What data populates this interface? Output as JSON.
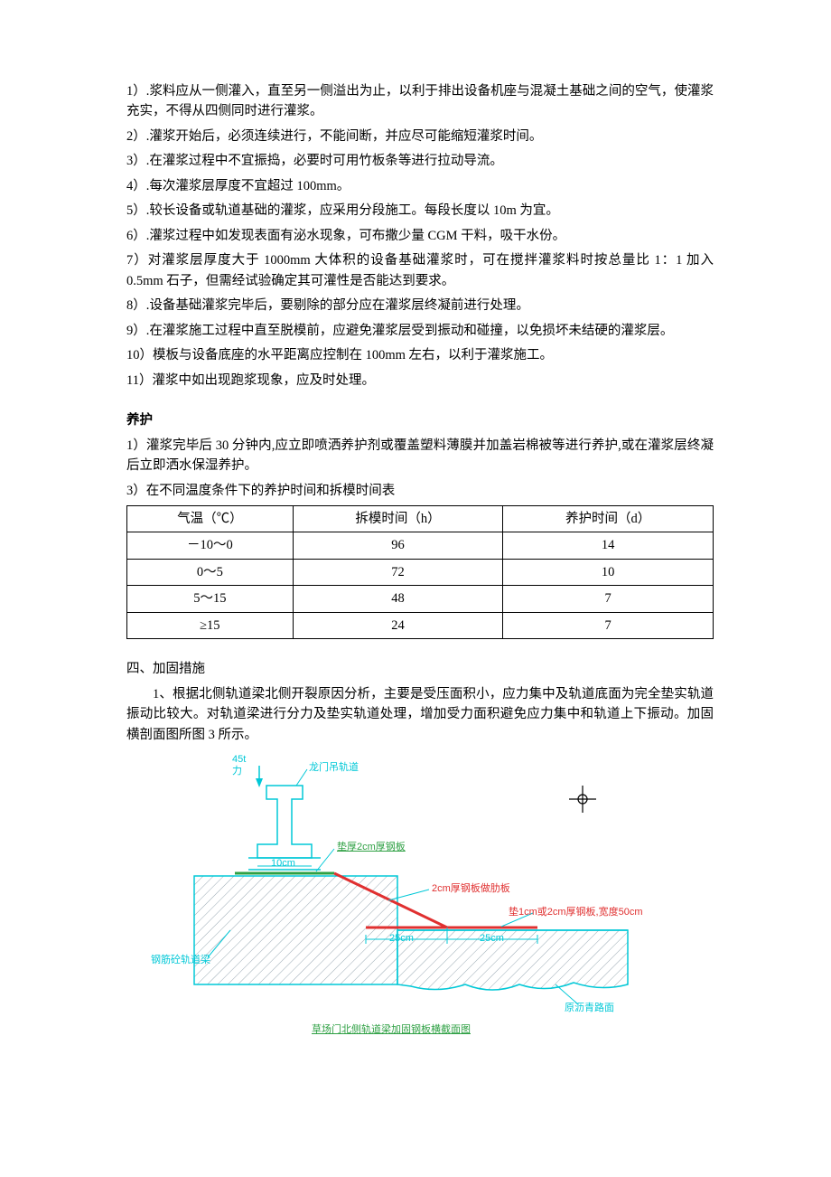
{
  "items": [
    "1）.浆料应从一侧灌入，直至另一侧溢出为止，以利于排出设备机座与混凝土基础之间的空气，使灌浆充实，不得从四侧同时进行灌浆。",
    "2）.灌浆开始后，必须连续进行，不能间断，并应尽可能缩短灌浆时间。",
    "3）.在灌浆过程中不宜振捣，必要时可用竹板条等进行拉动导流。",
    "4）.每次灌浆层厚度不宜超过 100mm。",
    "5）.较长设备或轨道基础的灌浆，应采用分段施工。每段长度以 10m 为宜。",
    "6）.灌浆过程中如发现表面有泌水现象，可布撒少量 CGM 干料，吸干水份。",
    "7）对灌浆层厚度大于 1000mm 大体积的设备基础灌浆时，可在搅拌灌浆料时按总量比 1：1 加入0.5mm 石子，但需经试验确定其可灌性是否能达到要求。",
    "8）.设备基础灌浆完毕后，要剔除的部分应在灌浆层终凝前进行处理。",
    "9）.在灌浆施工过程中直至脱模前，应避免灌浆层受到振动和碰撞，以免损坏未结硬的灌浆层。",
    "10）模板与设备底座的水平距离应控制在 100mm 左右，以利于灌浆施工。",
    "11）灌浆中如出现跑浆现象，应及时处理。"
  ],
  "curing": {
    "heading": "养护",
    "p1": "1）灌浆完毕后 30 分钟内,应立即喷洒养护剂或覆盖塑料薄膜并加盖岩棉被等进行养护,或在灌浆层终凝后立即洒水保湿养护。",
    "p3": "3）在不同温度条件下的养护时间和拆模时间表",
    "table": {
      "headers": [
        "气温（℃）",
        "拆模时间（h）",
        "养护时间（d）"
      ],
      "rows": [
        [
          "－10～0",
          "96",
          "14"
        ],
        [
          "0～5",
          "72",
          "10"
        ],
        [
          "5～15",
          "48",
          "7"
        ],
        [
          "≥15",
          "24",
          "7"
        ]
      ]
    }
  },
  "section4": {
    "title": "四、加固措施",
    "p1": "1、根据北侧轨道梁北侧开裂原因分析，主要是受压面积小，应力集中及轨道底面为完全垫实轨道振动比较大。对轨道梁进行分力及垫实轨道处理，增加受力面积避免应力集中和轨道上下振动。加固横剖面图所图 3 所示。"
  },
  "diagram": {
    "caption": "草场门北侧轨道梁加固钢板横截面图",
    "labels": {
      "force": "45t",
      "forceSub": "力",
      "rail": "龙门吊轨道",
      "d10cm": "10cm",
      "pad2cm": "垫厚2cm厚钢板",
      "rib": "2cm厚钢板做肋板",
      "bottomPad": "垫1cm或2cm厚钢板,宽度50cm",
      "d25cm1": "25cm",
      "d25cm2": "25cm",
      "beam": "钢筋砼轨道梁",
      "asphalt": "原沥青路面"
    },
    "colors": {
      "cyan": "#00c8d7",
      "red": "#e03030",
      "green": "#2ea043",
      "grayHatch": "#9aa9b3",
      "black": "#000000"
    }
  }
}
